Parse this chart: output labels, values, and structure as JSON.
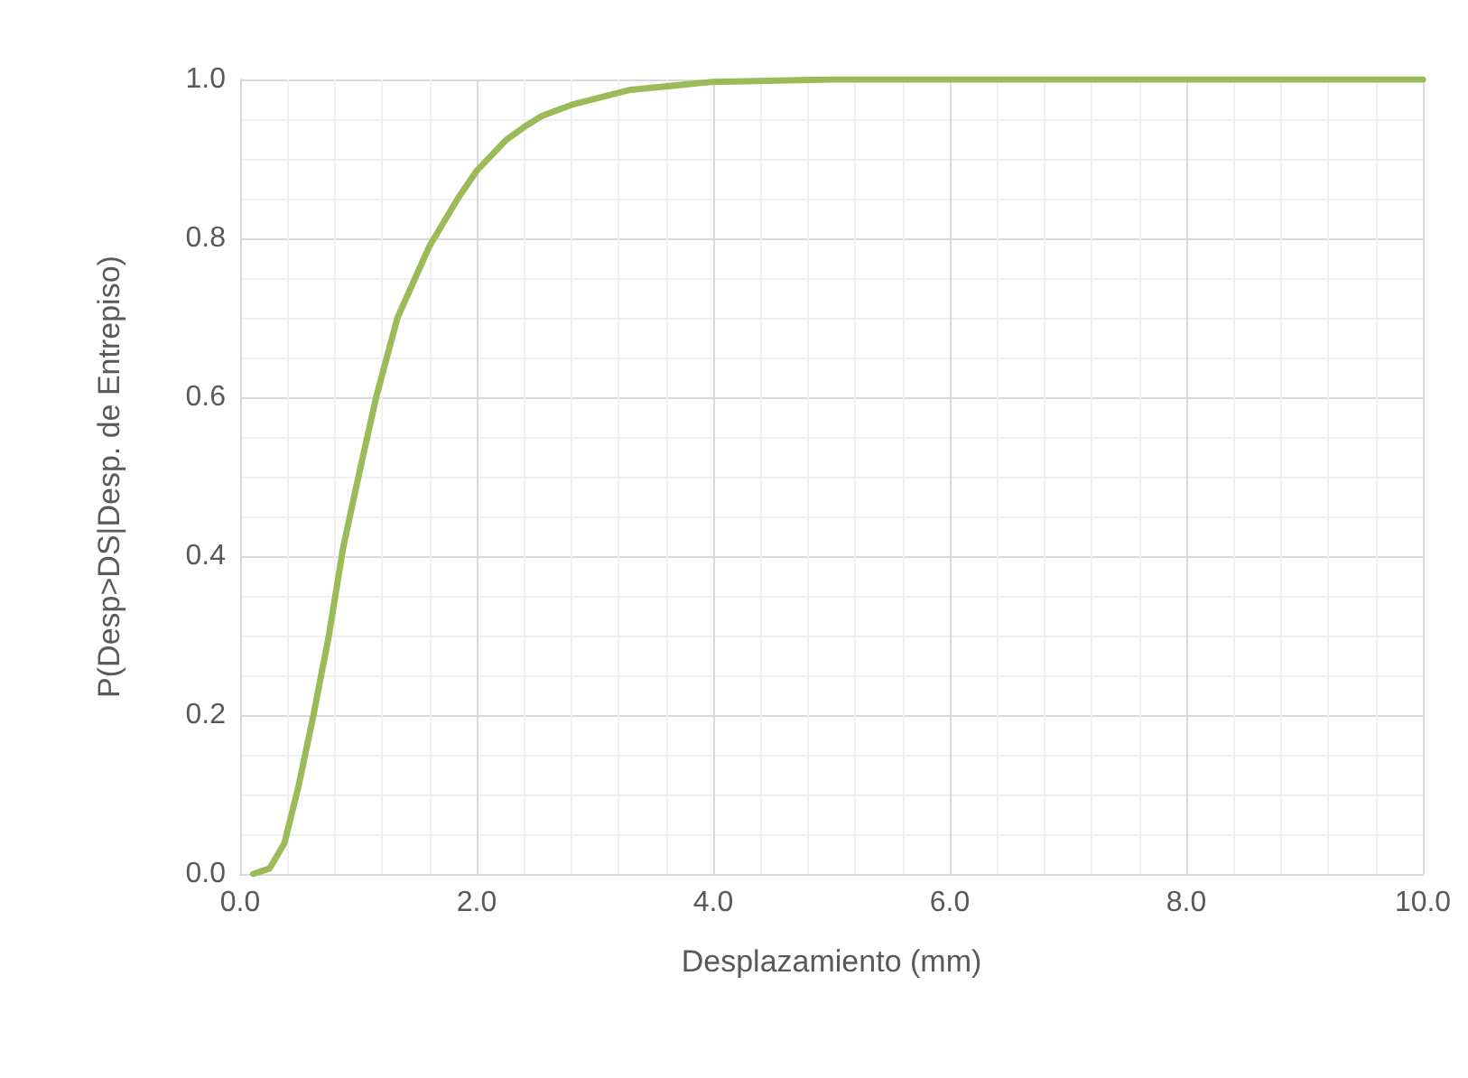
{
  "chart_data": {
    "type": "line",
    "xlabel": "Desplazamiento (mm)",
    "ylabel": "P(Desp>DS|Desp. de Entrepiso)",
    "x": [
      0.11,
      0.25,
      0.375,
      0.49,
      0.62,
      0.75,
      0.87,
      1.0,
      1.15,
      1.33,
      1.6,
      1.84,
      2.0,
      2.25,
      2.4,
      2.55,
      2.8,
      3.3,
      4.0,
      5.0,
      6.0,
      7.0,
      8.0,
      9.0,
      10.0
    ],
    "series": [
      {
        "color": "#9bbb59",
        "values": [
          0,
          0.007,
          0.039,
          0.108,
          0.2,
          0.3,
          0.41,
          0.5,
          0.6,
          0.7,
          0.79,
          0.85,
          0.885,
          0.924,
          0.94,
          0.954,
          0.968,
          0.987,
          0.997,
          1.0,
          1.0,
          1.0,
          1.0,
          1.0,
          1.0
        ]
      }
    ],
    "xlim": [
      0,
      10
    ],
    "xticks": [
      {
        "value": 0,
        "label": "0.0"
      },
      {
        "value": 2,
        "label": "2.0"
      },
      {
        "value": 4,
        "label": "4.0"
      },
      {
        "value": 6,
        "label": "6.0"
      },
      {
        "value": 8,
        "label": "8.0"
      },
      {
        "value": 10,
        "label": "10.0"
      }
    ],
    "ylim": [
      0,
      1
    ],
    "yticks": [
      {
        "value": 0,
        "label": "0.0"
      },
      {
        "value": 0.2,
        "label": "0.2"
      },
      {
        "value": 0.4,
        "label": "0.4"
      },
      {
        "value": 0.6,
        "label": "0.6"
      },
      {
        "value": 0.8,
        "label": "0.8"
      },
      {
        "value": 1,
        "label": "1.0"
      }
    ],
    "grid": true,
    "marker": "none",
    "line_style": "solid"
  }
}
